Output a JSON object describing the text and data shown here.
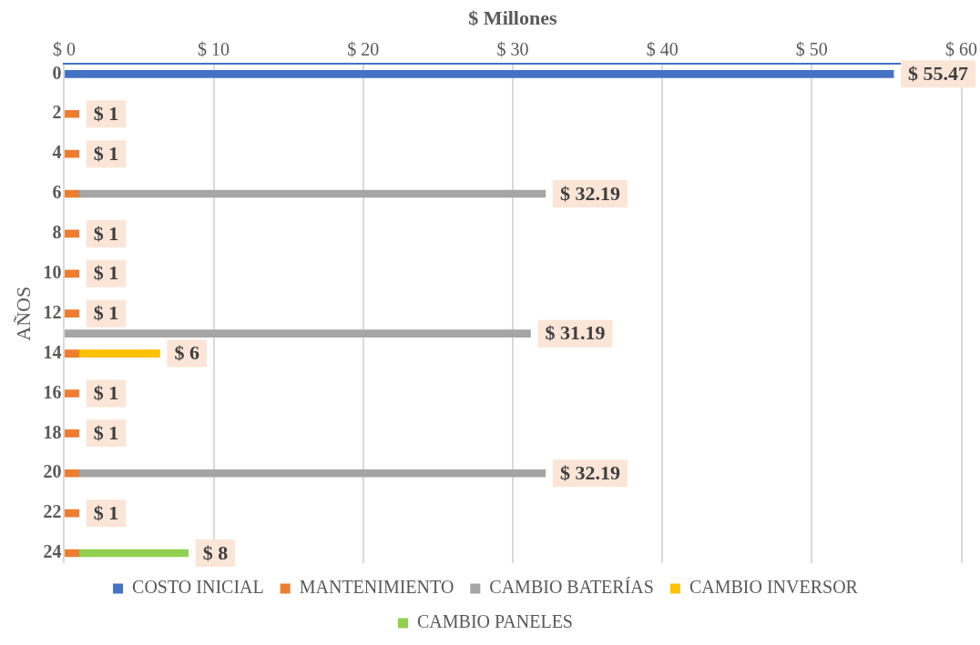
{
  "chart_data": {
    "type": "bar",
    "orientation": "horizontal",
    "stacked": true,
    "xlabel": "$ Millones",
    "ylabel": "AÑOS",
    "categories": [
      "0",
      null,
      "2",
      null,
      "4",
      null,
      "6",
      null,
      "8",
      null,
      "10",
      null,
      "12",
      null,
      "14",
      null,
      "16",
      null,
      "18",
      null,
      "20",
      null,
      "22",
      null,
      "24"
    ],
    "series": [
      {
        "name": "COSTO INICIAL",
        "color": "#4472c4",
        "values": [
          55.47,
          null,
          null,
          null,
          null,
          null,
          null,
          null,
          null,
          null,
          null,
          null,
          null,
          null,
          null,
          null,
          null,
          null,
          null,
          null,
          null,
          null,
          null,
          null,
          null
        ]
      },
      {
        "name": "MANTENIMIENTO",
        "color": "#ed7d31",
        "values": [
          null,
          null,
          1,
          null,
          1,
          null,
          1,
          null,
          1,
          null,
          1,
          null,
          1,
          null,
          1,
          null,
          1,
          null,
          1,
          null,
          1,
          null,
          1,
          null,
          1
        ]
      },
      {
        "name": "CAMBIO BATERÍAS",
        "color": "#a5a5a5",
        "values": [
          null,
          null,
          null,
          null,
          null,
          null,
          31.19,
          null,
          null,
          null,
          null,
          null,
          null,
          31.19,
          null,
          null,
          null,
          null,
          null,
          null,
          31.19,
          null,
          null,
          null,
          null
        ]
      },
      {
        "name": "CAMBIO INVERSOR",
        "color": "#ffc000",
        "values": [
          null,
          null,
          null,
          null,
          null,
          null,
          null,
          null,
          null,
          null,
          null,
          null,
          null,
          null,
          5.4,
          null,
          null,
          null,
          null,
          null,
          null,
          null,
          null,
          null,
          null
        ]
      },
      {
        "name": "CAMBIO PANELES",
        "color": "#92d050",
        "values": [
          null,
          null,
          null,
          null,
          null,
          null,
          null,
          null,
          null,
          null,
          null,
          null,
          null,
          null,
          null,
          null,
          null,
          null,
          null,
          null,
          null,
          null,
          null,
          null,
          7.3
        ]
      }
    ],
    "totals": [
      "$ 55.47",
      null,
      "$ 1",
      null,
      "$ 1",
      null,
      "$ 32.19",
      null,
      "$ 1",
      null,
      "$ 1",
      null,
      "$ 1",
      "$ 31.19",
      "$ 6",
      null,
      "$ 1",
      null,
      "$ 1",
      null,
      "$ 32.19",
      null,
      "$ 1",
      null,
      "$ 8"
    ],
    "xlim": [
      0,
      60
    ],
    "xticks": [
      {
        "value": 0,
        "label": "$ 0"
      },
      {
        "value": 10,
        "label": "$ 10"
      },
      {
        "value": 20,
        "label": "$ 20"
      },
      {
        "value": 30,
        "label": "$ 30"
      },
      {
        "value": 40,
        "label": "$ 40"
      },
      {
        "value": 50,
        "label": "$ 50"
      },
      {
        "value": 60,
        "label": "$ 60"
      }
    ],
    "grid": "x",
    "legend": "bottom"
  }
}
